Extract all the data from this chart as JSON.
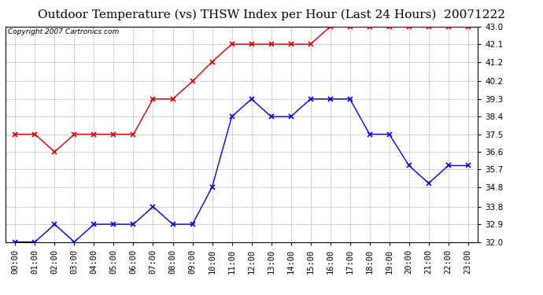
{
  "title": "Outdoor Temperature (vs) THSW Index per Hour (Last 24 Hours)  20071222",
  "copyright": "Copyright 2007 Cartronics.com",
  "hours": [
    "00:00",
    "01:00",
    "02:00",
    "03:00",
    "04:00",
    "05:00",
    "06:00",
    "07:00",
    "08:00",
    "09:00",
    "10:00",
    "11:00",
    "12:00",
    "13:00",
    "14:00",
    "15:00",
    "16:00",
    "17:00",
    "18:00",
    "19:00",
    "20:00",
    "21:00",
    "22:00",
    "23:00"
  ],
  "temp": [
    32.0,
    32.0,
    32.9,
    32.0,
    32.9,
    32.9,
    32.9,
    33.8,
    32.9,
    32.9,
    34.8,
    38.4,
    39.3,
    38.4,
    38.4,
    39.3,
    39.3,
    39.3,
    37.5,
    37.5,
    35.9,
    35.0,
    35.9,
    35.9
  ],
  "thsw": [
    37.5,
    37.5,
    36.6,
    37.5,
    37.5,
    37.5,
    37.5,
    39.3,
    39.3,
    40.2,
    41.2,
    42.1,
    42.1,
    42.1,
    42.1,
    42.1,
    43.0,
    43.0,
    43.0,
    43.0,
    43.0,
    43.0,
    43.0,
    43.0
  ],
  "temp_color": "#0000cc",
  "thsw_color": "#cc0000",
  "marker": "x",
  "markersize": 4,
  "linewidth": 1.0,
  "ylim_min": 32.0,
  "ylim_max": 43.0,
  "yticks": [
    32.0,
    32.9,
    33.8,
    34.8,
    35.7,
    36.6,
    37.5,
    38.4,
    39.3,
    40.2,
    41.2,
    42.1,
    43.0
  ],
  "bg_color": "#ffffff",
  "plot_bg_color": "#ffffff",
  "grid_color": "#aaaaaa",
  "title_fontsize": 11,
  "tick_fontsize": 7.5,
  "copyright_fontsize": 6.5
}
